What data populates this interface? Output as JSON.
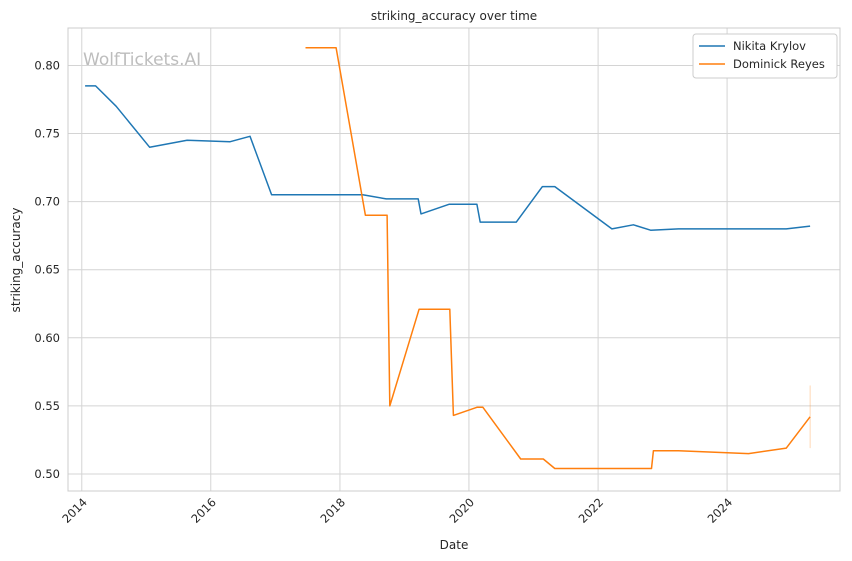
{
  "watermark": "WolfTickets.AI",
  "chart_data": {
    "type": "line",
    "title": "striking_accuracy over time",
    "xlabel": "Date",
    "ylabel": "striking_accuracy",
    "xlim": [
      "2013-10-15",
      "2025-10-01"
    ],
    "ylim": [
      0.4875,
      0.8275
    ],
    "xticks": [
      {
        "date": "2014-01-01",
        "label": "2014"
      },
      {
        "date": "2016-01-01",
        "label": "2016"
      },
      {
        "date": "2018-01-01",
        "label": "2018"
      },
      {
        "date": "2020-01-01",
        "label": "2020"
      },
      {
        "date": "2022-01-01",
        "label": "2022"
      },
      {
        "date": "2024-01-01",
        "label": "2024"
      }
    ],
    "yticks": [
      0.5,
      0.55,
      0.6,
      0.65,
      0.7,
      0.75,
      0.8
    ],
    "grid": true,
    "legend_position": "top-right",
    "series": [
      {
        "name": "Nikita Krylov",
        "color": "#1f77b4",
        "points": [
          [
            "2014-01-20",
            0.785
          ],
          [
            "2014-03-20",
            0.785
          ],
          [
            "2014-07-15",
            0.77
          ],
          [
            "2015-01-20",
            0.74
          ],
          [
            "2015-08-20",
            0.745
          ],
          [
            "2016-04-20",
            0.744
          ],
          [
            "2016-08-10",
            0.748
          ],
          [
            "2016-12-10",
            0.705
          ],
          [
            "2018-05-10",
            0.705
          ],
          [
            "2018-09-20",
            0.702
          ],
          [
            "2019-03-20",
            0.702
          ],
          [
            "2019-04-05",
            0.691
          ],
          [
            "2019-09-10",
            0.698
          ],
          [
            "2020-02-15",
            0.698
          ],
          [
            "2020-03-05",
            0.685
          ],
          [
            "2020-09-25",
            0.685
          ],
          [
            "2021-02-20",
            0.711
          ],
          [
            "2021-05-01",
            0.711
          ],
          [
            "2022-03-20",
            0.68
          ],
          [
            "2022-07-20",
            0.683
          ],
          [
            "2022-10-25",
            0.679
          ],
          [
            "2023-04-01",
            0.68
          ],
          [
            "2024-12-01",
            0.68
          ],
          [
            "2025-04-15",
            0.682
          ]
        ]
      },
      {
        "name": "Dominick Reyes",
        "color": "#ff7f0e",
        "points": [
          [
            "2017-06-20",
            0.813
          ],
          [
            "2017-12-10",
            0.813
          ],
          [
            "2018-05-25",
            0.69
          ],
          [
            "2018-09-25",
            0.69
          ],
          [
            "2018-10-10",
            0.55
          ],
          [
            "2019-03-25",
            0.621
          ],
          [
            "2019-09-15",
            0.621
          ],
          [
            "2019-10-05",
            0.543
          ],
          [
            "2020-02-15",
            0.549
          ],
          [
            "2020-03-20",
            0.549
          ],
          [
            "2020-10-20",
            0.511
          ],
          [
            "2021-02-25",
            0.511
          ],
          [
            "2021-05-01",
            0.504
          ],
          [
            "2022-10-30",
            0.504
          ],
          [
            "2022-11-10",
            0.517
          ],
          [
            "2023-04-01",
            0.517
          ],
          [
            "2024-05-01",
            0.515
          ],
          [
            "2024-12-01",
            0.519
          ],
          [
            "2025-04-15",
            0.542
          ]
        ]
      }
    ],
    "annotations": [
      {
        "type": "vertical-segment",
        "date": "2025-04-15",
        "y_from": 0.519,
        "y_to": 0.565,
        "color": "#ff7f0e"
      }
    ]
  }
}
